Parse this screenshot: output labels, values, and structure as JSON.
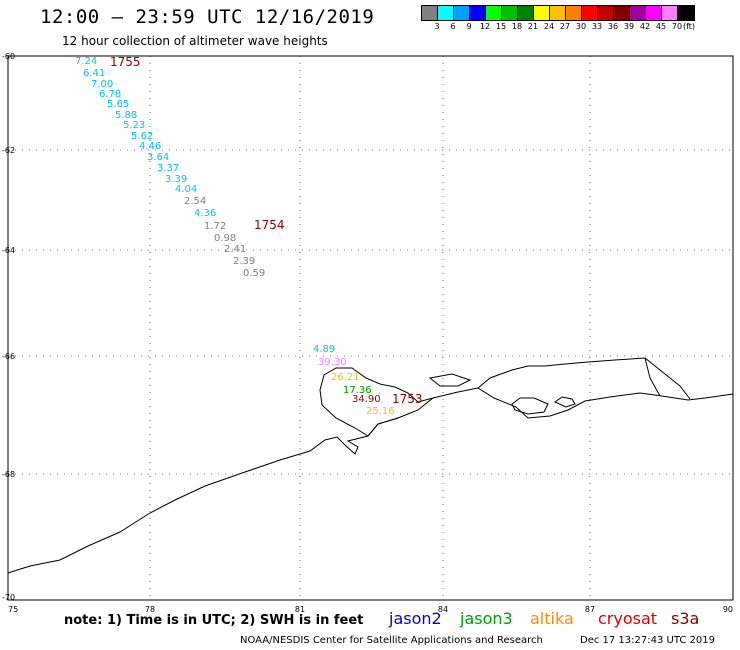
{
  "header": {
    "title": "12:00 – 23:59 UTC 12/16/2019",
    "subtitle": "12 hour collection of altimeter wave heights"
  },
  "legend": {
    "colors": [
      "#808080",
      "#00ffff",
      "#00a0ff",
      "#0000ff",
      "#00ff00",
      "#00c000",
      "#008000",
      "#ffff00",
      "#ffc000",
      "#ff8000",
      "#ff0000",
      "#c00000",
      "#800000",
      "#a000a0",
      "#ff00ff",
      "#ff80ff",
      "#000000"
    ],
    "labels": [
      "3",
      "6",
      "9",
      "12",
      "15",
      "18",
      "21",
      "24",
      "27",
      "30",
      "33",
      "36",
      "39",
      "42",
      "45",
      "70",
      "(ft)"
    ]
  },
  "axes": {
    "lat_labels": [
      "-60",
      "-62",
      "-64",
      "-66",
      "-68",
      "-70"
    ],
    "lon_labels": [
      "75",
      "78",
      "81",
      "84",
      "87",
      "90"
    ]
  },
  "tracks": [
    {
      "label": "1755",
      "color": "#8b0000",
      "readings": [
        {
          "value": "7.24",
          "color": "#00bfff"
        },
        {
          "value": "6.41",
          "color": "#00bfff"
        },
        {
          "value": "7.00",
          "color": "#00bfff"
        },
        {
          "value": "6.78",
          "color": "#00bfff"
        },
        {
          "value": "5.65",
          "color": "#00bfff"
        },
        {
          "value": "5.88",
          "color": "#00bfff"
        },
        {
          "value": "5.23",
          "color": "#00bfff"
        },
        {
          "value": "5.62",
          "color": "#00bfff"
        },
        {
          "value": "4.46",
          "color": "#00bfff"
        },
        {
          "value": "3.64",
          "color": "#00bfff"
        },
        {
          "value": "3.37",
          "color": "#00bfff"
        },
        {
          "value": "3.39",
          "color": "#00bfff"
        },
        {
          "value": "4.04",
          "color": "#00bfff"
        },
        {
          "value": "2.54",
          "color": "#808080"
        },
        {
          "value": "4.36",
          "color": "#00bfff"
        }
      ]
    },
    {
      "label": "1754",
      "color": "#8b0000",
      "readings": [
        {
          "value": "1.72",
          "color": "#808080"
        },
        {
          "value": "0.98",
          "color": "#808080"
        },
        {
          "value": "2.41",
          "color": "#808080"
        },
        {
          "value": "2.39",
          "color": "#808080"
        },
        {
          "value": "0.59",
          "color": "#808080"
        }
      ]
    },
    {
      "label": "1753",
      "color": "#8b0000",
      "readings": [
        {
          "value": "4.89",
          "color": "#00bfff"
        },
        {
          "value": "39.30",
          "color": "#ff80ff"
        },
        {
          "value": "26.21",
          "color": "#ffc000"
        },
        {
          "value": "17.36",
          "color": "#009000"
        },
        {
          "value": "34.90",
          "color": "#8b0000"
        },
        {
          "value": "25.16",
          "color": "#ffc000"
        }
      ]
    }
  ],
  "footer": {
    "note": "note:  1) Time is in UTC;  2) SWH is in feet",
    "satellites": [
      {
        "name": "jason2",
        "color": "#0000dd"
      },
      {
        "name": "jason3",
        "color": "#00a000"
      },
      {
        "name": "altika",
        "color": "#ff8c00"
      },
      {
        "name": "cryosat",
        "color": "#dd0000"
      },
      {
        "name": "s3a",
        "color": "#8b0000"
      }
    ],
    "credit": "NOAA/NESDIS Center for Satellite Applications and Research",
    "timestamp": "Dec 17 13:27:43 UTC 2019"
  }
}
